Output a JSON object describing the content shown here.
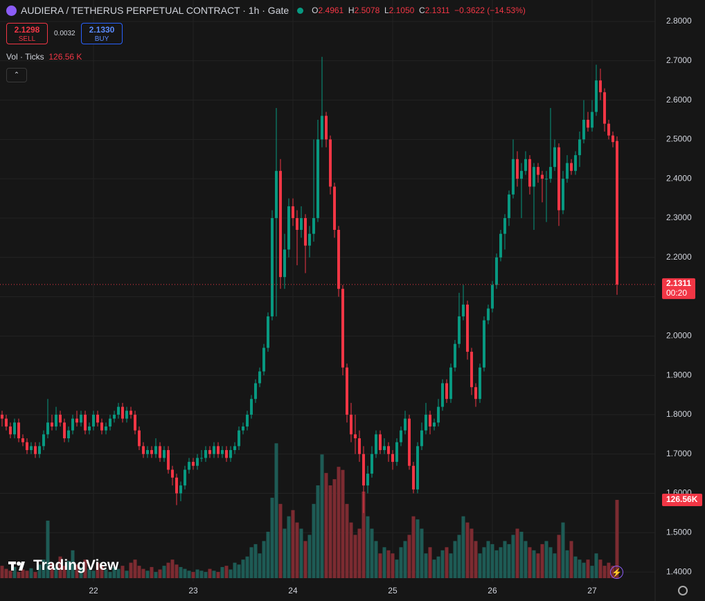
{
  "header": {
    "title": "AUDIERA / TETHERUS PERPETUAL CONTRACT · 1h · Gate",
    "o_key": "O",
    "o": "2.4961",
    "h_key": "H",
    "h": "2.5078",
    "l_key": "L",
    "l": "2.1050",
    "c_key": "C",
    "c": "2.1311",
    "change": "−0.3622 (−14.53%)",
    "sell_price": "2.1298",
    "sell": "SELL",
    "spread": "0.0032",
    "buy_price": "2.1330",
    "buy": "BUY",
    "vol_title": "Vol · Ticks",
    "vol_value": "126.56 K",
    "brand": "TradingView"
  },
  "chart_data": {
    "type": "candlestick",
    "up_color": "#089981",
    "down_color": "#f23645",
    "vol_up_color": "#1e5b55",
    "vol_down_color": "#7c2b31",
    "grid": true,
    "xlim": [
      -0.5,
      157.17
    ],
    "ylim": [
      1.3614,
      2.8546
    ],
    "vol_ylim": [
      0,
      900
    ],
    "xticks": [
      {
        "value": 22,
        "label": "22"
      },
      {
        "value": 46,
        "label": "23"
      },
      {
        "value": 70,
        "label": "24"
      },
      {
        "value": 94,
        "label": "25"
      },
      {
        "value": 118,
        "label": "26"
      },
      {
        "value": 142,
        "label": "27"
      }
    ],
    "yticks": [
      {
        "value": 1.4,
        "label": "1.4000"
      },
      {
        "value": 1.5,
        "label": "1.5000"
      },
      {
        "value": 1.6,
        "label": "1.6000"
      },
      {
        "value": 1.7,
        "label": "1.7000"
      },
      {
        "value": 1.8,
        "label": "1.8000"
      },
      {
        "value": 1.9,
        "label": "1.9000"
      },
      {
        "value": 2.0,
        "label": "2.0000"
      },
      {
        "value": 2.1,
        "label": "2.1000"
      },
      {
        "value": 2.2,
        "label": "2.2000"
      },
      {
        "value": 2.3,
        "label": "2.3000"
      },
      {
        "value": 2.4,
        "label": "2.4000"
      },
      {
        "value": 2.5,
        "label": "2.5000"
      },
      {
        "value": 2.6,
        "label": "2.6000"
      },
      {
        "value": 2.7,
        "label": "2.7000"
      },
      {
        "value": 2.8,
        "label": "2.8000"
      }
    ],
    "last_price_label": "2.1311",
    "countdown": "00:20",
    "last_volume_label": "126.56K",
    "candles": [
      [
        1.8,
        1.81,
        1.77,
        1.79
      ],
      [
        1.79,
        1.8,
        1.76,
        1.77
      ],
      [
        1.77,
        1.78,
        1.74,
        1.75
      ],
      [
        1.75,
        1.79,
        1.74,
        1.78
      ],
      [
        1.78,
        1.79,
        1.73,
        1.74
      ],
      [
        1.74,
        1.75,
        1.72,
        1.73
      ],
      [
        1.73,
        1.74,
        1.7,
        1.71
      ],
      [
        1.71,
        1.73,
        1.7,
        1.72
      ],
      [
        1.72,
        1.73,
        1.69,
        1.7
      ],
      [
        1.7,
        1.73,
        1.69,
        1.72
      ],
      [
        1.72,
        1.76,
        1.71,
        1.75
      ],
      [
        1.75,
        1.84,
        1.74,
        1.78
      ],
      [
        1.78,
        1.8,
        1.76,
        1.77
      ],
      [
        1.77,
        1.82,
        1.76,
        1.8
      ],
      [
        1.8,
        1.81,
        1.77,
        1.78
      ],
      [
        1.78,
        1.79,
        1.73,
        1.74
      ],
      [
        1.74,
        1.77,
        1.73,
        1.76
      ],
      [
        1.76,
        1.8,
        1.75,
        1.79
      ],
      [
        1.79,
        1.81,
        1.77,
        1.78
      ],
      [
        1.78,
        1.81,
        1.77,
        1.8
      ],
      [
        1.8,
        1.81,
        1.75,
        1.76
      ],
      [
        1.76,
        1.78,
        1.75,
        1.77
      ],
      [
        1.77,
        1.81,
        1.76,
        1.8
      ],
      [
        1.8,
        1.81,
        1.77,
        1.78
      ],
      [
        1.78,
        1.79,
        1.75,
        1.76
      ],
      [
        1.76,
        1.78,
        1.75,
        1.77
      ],
      [
        1.77,
        1.8,
        1.76,
        1.79
      ],
      [
        1.79,
        1.81,
        1.78,
        1.8
      ],
      [
        1.8,
        1.83,
        1.79,
        1.82
      ],
      [
        1.82,
        1.83,
        1.78,
        1.79
      ],
      [
        1.79,
        1.82,
        1.78,
        1.81
      ],
      [
        1.81,
        1.82,
        1.79,
        1.8
      ],
      [
        1.8,
        1.81,
        1.75,
        1.76
      ],
      [
        1.76,
        1.77,
        1.71,
        1.72
      ],
      [
        1.72,
        1.73,
        1.69,
        1.7
      ],
      [
        1.7,
        1.72,
        1.69,
        1.71
      ],
      [
        1.71,
        1.72,
        1.69,
        1.7
      ],
      [
        1.7,
        1.74,
        1.69,
        1.72
      ],
      [
        1.72,
        1.73,
        1.68,
        1.69
      ],
      [
        1.69,
        1.72,
        1.68,
        1.71
      ],
      [
        1.71,
        1.72,
        1.65,
        1.66
      ],
      [
        1.66,
        1.67,
        1.62,
        1.64
      ],
      [
        1.64,
        1.65,
        1.57,
        1.6
      ],
      [
        1.6,
        1.63,
        1.58,
        1.62
      ],
      [
        1.62,
        1.67,
        1.61,
        1.66
      ],
      [
        1.66,
        1.69,
        1.65,
        1.68
      ],
      [
        1.68,
        1.69,
        1.66,
        1.67
      ],
      [
        1.67,
        1.7,
        1.66,
        1.69
      ],
      [
        1.69,
        1.71,
        1.68,
        1.69
      ],
      [
        1.69,
        1.72,
        1.68,
        1.71
      ],
      [
        1.71,
        1.72,
        1.69,
        1.7
      ],
      [
        1.7,
        1.73,
        1.69,
        1.72
      ],
      [
        1.72,
        1.73,
        1.69,
        1.7
      ],
      [
        1.7,
        1.72,
        1.69,
        1.71
      ],
      [
        1.71,
        1.72,
        1.68,
        1.69
      ],
      [
        1.69,
        1.72,
        1.68,
        1.71
      ],
      [
        1.71,
        1.73,
        1.7,
        1.72
      ],
      [
        1.72,
        1.77,
        1.71,
        1.76
      ],
      [
        1.76,
        1.78,
        1.75,
        1.77
      ],
      [
        1.77,
        1.81,
        1.76,
        1.8
      ],
      [
        1.8,
        1.85,
        1.79,
        1.84
      ],
      [
        1.84,
        1.89,
        1.83,
        1.88
      ],
      [
        1.88,
        1.92,
        1.87,
        1.91
      ],
      [
        1.91,
        1.98,
        1.9,
        1.97
      ],
      [
        1.97,
        2.06,
        1.96,
        2.05
      ],
      [
        2.05,
        2.32,
        2.04,
        2.3
      ],
      [
        2.3,
        2.58,
        2.05,
        2.42
      ],
      [
        2.42,
        2.45,
        2.12,
        2.15
      ],
      [
        2.15,
        2.26,
        2.12,
        2.22
      ],
      [
        2.22,
        2.35,
        2.2,
        2.33
      ],
      [
        2.33,
        2.35,
        2.28,
        2.3
      ],
      [
        2.3,
        2.32,
        2.18,
        2.27
      ],
      [
        2.27,
        2.33,
        2.25,
        2.3
      ],
      [
        2.3,
        2.31,
        2.16,
        2.23
      ],
      [
        2.23,
        2.28,
        2.2,
        2.26
      ],
      [
        2.26,
        2.5,
        2.24,
        2.3
      ],
      [
        2.3,
        2.55,
        2.29,
        2.5
      ],
      [
        2.5,
        2.71,
        2.48,
        2.56
      ],
      [
        2.56,
        2.57,
        2.48,
        2.5
      ],
      [
        2.5,
        2.51,
        2.36,
        2.38
      ],
      [
        2.38,
        2.39,
        2.25,
        2.27
      ],
      [
        2.27,
        2.28,
        2.1,
        2.12
      ],
      [
        2.12,
        2.13,
        1.9,
        1.92
      ],
      [
        1.92,
        1.93,
        1.78,
        1.8
      ],
      [
        1.8,
        1.83,
        1.73,
        1.75
      ],
      [
        1.75,
        1.8,
        1.7,
        1.74
      ],
      [
        1.74,
        1.76,
        1.68,
        1.7
      ],
      [
        1.7,
        1.72,
        1.55,
        1.62
      ],
      [
        1.62,
        1.67,
        1.6,
        1.65
      ],
      [
        1.65,
        1.72,
        1.64,
        1.7
      ],
      [
        1.7,
        1.76,
        1.69,
        1.75
      ],
      [
        1.75,
        1.76,
        1.7,
        1.71
      ],
      [
        1.71,
        1.74,
        1.7,
        1.72
      ],
      [
        1.72,
        1.73,
        1.68,
        1.7
      ],
      [
        1.7,
        1.71,
        1.66,
        1.68
      ],
      [
        1.68,
        1.74,
        1.67,
        1.73
      ],
      [
        1.73,
        1.77,
        1.72,
        1.76
      ],
      [
        1.76,
        1.81,
        1.75,
        1.79
      ],
      [
        1.79,
        1.8,
        1.66,
        1.67
      ],
      [
        1.67,
        1.68,
        1.6,
        1.61
      ],
      [
        1.61,
        1.73,
        1.6,
        1.72
      ],
      [
        1.72,
        1.78,
        1.71,
        1.76
      ],
      [
        1.76,
        1.83,
        1.75,
        1.8
      ],
      [
        1.8,
        1.81,
        1.75,
        1.77
      ],
      [
        1.77,
        1.79,
        1.76,
        1.78
      ],
      [
        1.78,
        1.84,
        1.77,
        1.82
      ],
      [
        1.82,
        1.89,
        1.81,
        1.88
      ],
      [
        1.88,
        1.89,
        1.83,
        1.84
      ],
      [
        1.84,
        1.93,
        1.83,
        1.92
      ],
      [
        1.92,
        1.99,
        1.91,
        1.98
      ],
      [
        1.98,
        2.11,
        1.97,
        2.05
      ],
      [
        2.05,
        2.13,
        2.04,
        2.08
      ],
      [
        2.08,
        2.09,
        1.94,
        1.96
      ],
      [
        1.96,
        1.97,
        1.85,
        1.87
      ],
      [
        1.87,
        1.88,
        1.82,
        1.84
      ],
      [
        1.84,
        1.93,
        1.83,
        1.92
      ],
      [
        1.92,
        2.05,
        1.91,
        2.04
      ],
      [
        2.04,
        2.08,
        2.03,
        2.07
      ],
      [
        2.07,
        2.14,
        2.06,
        2.13
      ],
      [
        2.13,
        2.21,
        2.12,
        2.2
      ],
      [
        2.2,
        2.27,
        2.19,
        2.26
      ],
      [
        2.26,
        2.31,
        2.22,
        2.3
      ],
      [
        2.3,
        2.37,
        2.28,
        2.36
      ],
      [
        2.36,
        2.5,
        2.35,
        2.45
      ],
      [
        2.45,
        2.47,
        2.38,
        2.4
      ],
      [
        2.4,
        2.44,
        2.3,
        2.42
      ],
      [
        2.42,
        2.47,
        2.41,
        2.45
      ],
      [
        2.45,
        2.46,
        2.36,
        2.38
      ],
      [
        2.38,
        2.44,
        2.27,
        2.43
      ],
      [
        2.43,
        2.44,
        2.39,
        2.41
      ],
      [
        2.41,
        2.42,
        2.34,
        2.4
      ],
      [
        2.4,
        2.42,
        2.29,
        2.4
      ],
      [
        2.4,
        2.58,
        2.39,
        2.43
      ],
      [
        2.43,
        2.5,
        2.42,
        2.48
      ],
      [
        2.48,
        2.49,
        2.28,
        2.32
      ],
      [
        2.32,
        2.42,
        2.31,
        2.4
      ],
      [
        2.4,
        2.46,
        2.39,
        2.44
      ],
      [
        2.44,
        2.45,
        2.41,
        2.42
      ],
      [
        2.42,
        2.47,
        2.41,
        2.46
      ],
      [
        2.46,
        2.52,
        2.43,
        2.5
      ],
      [
        2.5,
        2.6,
        2.49,
        2.55
      ],
      [
        2.55,
        2.57,
        2.52,
        2.53
      ],
      [
        2.53,
        2.6,
        2.52,
        2.57
      ],
      [
        2.57,
        2.69,
        2.56,
        2.65
      ],
      [
        2.65,
        2.68,
        2.6,
        2.62
      ],
      [
        2.62,
        2.63,
        2.52,
        2.54
      ],
      [
        2.54,
        2.55,
        2.5,
        2.51
      ],
      [
        2.51,
        2.52,
        2.48,
        2.4933
      ],
      [
        2.4961,
        2.5078,
        2.105,
        2.1311
      ]
    ],
    "volume": [
      20,
      15,
      12,
      18,
      10,
      14,
      12,
      16,
      10,
      22,
      30,
      93,
      25,
      18,
      35,
      20,
      28,
      45,
      22,
      18,
      30,
      15,
      12,
      25,
      20,
      14,
      10,
      18,
      15,
      20,
      12,
      25,
      30,
      20,
      15,
      12,
      18,
      10,
      14,
      20,
      25,
      30,
      22,
      18,
      15,
      12,
      10,
      14,
      12,
      10,
      15,
      12,
      10,
      18,
      20,
      14,
      25,
      22,
      30,
      35,
      50,
      55,
      40,
      60,
      75,
      130,
      218,
      120,
      80,
      100,
      110,
      90,
      80,
      60,
      70,
      120,
      150,
      200,
      170,
      150,
      160,
      180,
      175,
      120,
      90,
      70,
      80,
      140,
      100,
      80,
      60,
      40,
      50,
      45,
      40,
      30,
      50,
      60,
      70,
      100,
      95,
      80,
      40,
      50,
      30,
      35,
      45,
      50,
      40,
      60,
      70,
      100,
      90,
      80,
      60,
      40,
      50,
      60,
      55,
      45,
      50,
      60,
      55,
      70,
      80,
      75,
      60,
      50,
      45,
      40,
      55,
      60,
      50,
      40,
      70,
      90,
      45,
      60,
      35,
      30,
      25,
      30,
      20,
      40,
      30,
      20,
      25,
      20,
      126.56
    ]
  }
}
